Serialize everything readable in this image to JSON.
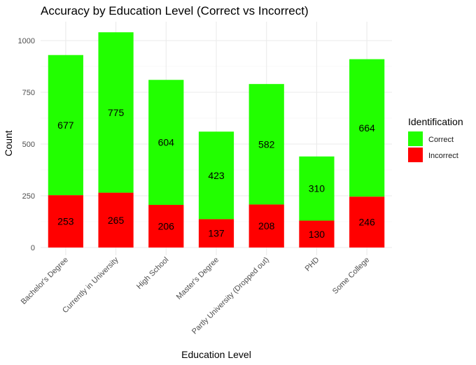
{
  "chart_data": {
    "type": "bar",
    "stacked": true,
    "title": "Accuracy by Education Level (Correct vs Incorrect)",
    "xlabel": "Education Level",
    "ylabel": "Count",
    "ylim": [
      0,
      1090
    ],
    "yticks": [
      0,
      250,
      500,
      750,
      1000
    ],
    "grid": true,
    "categories": [
      "Bachelor's Degree",
      "Currently in University",
      "High School",
      "Master's Degree",
      "Partly University (Dropped out)",
      "PHD",
      "Some College"
    ],
    "series": [
      {
        "name": "Incorrect",
        "color": "#ff0000",
        "values": [
          253,
          265,
          206,
          137,
          208,
          130,
          246
        ]
      },
      {
        "name": "Correct",
        "color": "#22ff00",
        "values": [
          677,
          775,
          604,
          423,
          582,
          310,
          664
        ]
      }
    ],
    "legend": {
      "title": "Identification",
      "position": "right",
      "entries": [
        {
          "label": "Correct",
          "color": "#22ff00"
        },
        {
          "label": "Incorrect",
          "color": "#ff0000"
        }
      ]
    }
  }
}
